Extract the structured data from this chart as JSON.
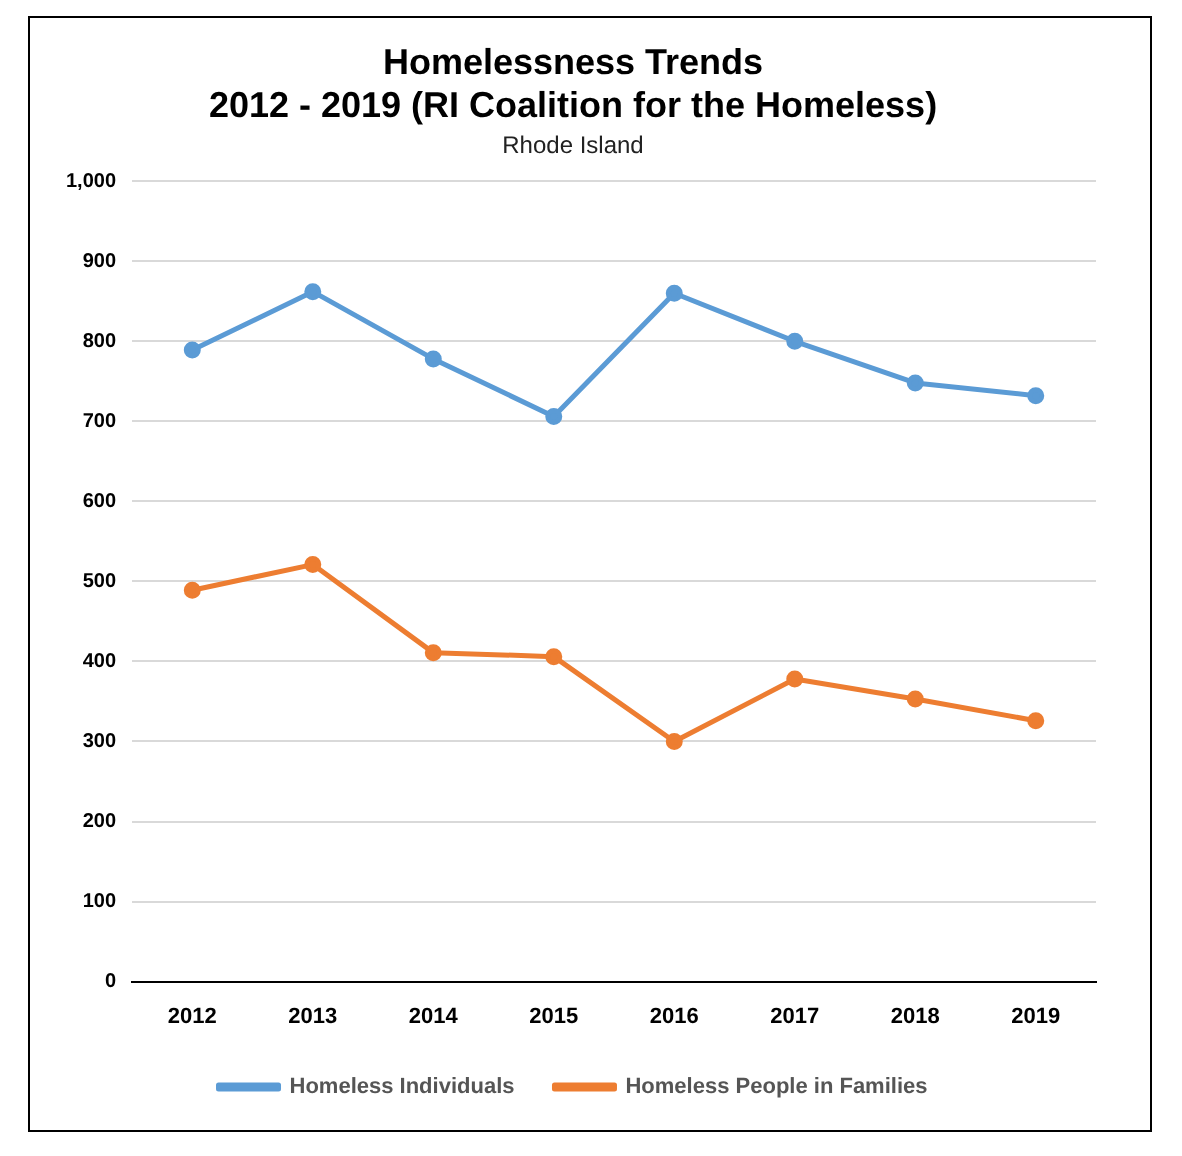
{
  "chart_data": {
    "type": "line",
    "title": "Homelessness Trends\n2012 - 2019 (RI Coalition for the Homeless)",
    "subtitle": "Rhode Island",
    "categories": [
      "2012",
      "2013",
      "2014",
      "2015",
      "2016",
      "2017",
      "2018",
      "2019"
    ],
    "series": [
      {
        "name": "Homeless Individuals",
        "color": "#5b9bd5",
        "values": [
          789,
          862,
          778,
          706,
          860,
          800,
          748,
          732
        ]
      },
      {
        "name": "Homeless People in Families",
        "color": "#ed7d31",
        "values": [
          489,
          521,
          411,
          406,
          300,
          378,
          353,
          326
        ]
      }
    ],
    "ylim": [
      0,
      1000
    ],
    "yticks": [
      0,
      {
        "value": 100,
        "label": "100"
      },
      200,
      300,
      400,
      500,
      600,
      700,
      800,
      900,
      {
        "value": 1000,
        "label": "1,000"
      }
    ],
    "grid": "y",
    "legend": "bottom",
    "marker": "circle",
    "line_style": "solid"
  }
}
